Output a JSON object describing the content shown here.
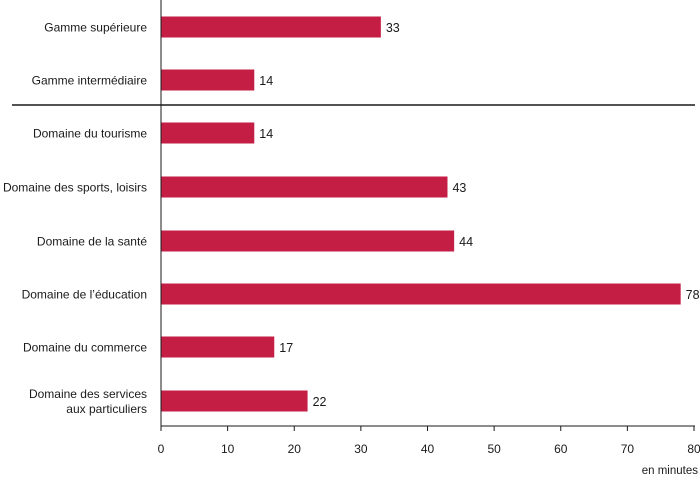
{
  "chart_data": {
    "type": "bar",
    "orientation": "horizontal",
    "categories": [
      [
        "Gamme supérieure"
      ],
      [
        "Gamme intermédiaire"
      ],
      [
        "Domaine du tourisme"
      ],
      [
        "Domaine des sports, loisirs"
      ],
      [
        "Domaine de la santé"
      ],
      [
        "Domaine de l’éducation"
      ],
      [
        "Domaine du commerce"
      ],
      [
        "Domaine des services",
        "aux particuliers"
      ]
    ],
    "values": [
      33,
      14,
      14,
      43,
      44,
      78,
      17,
      22
    ],
    "value_labels": [
      "33",
      "14",
      "14",
      "43",
      "44",
      "78",
      "17",
      "22"
    ],
    "separator_after_index": 1,
    "xlim": [
      0,
      80
    ],
    "xticks": [
      0,
      10,
      20,
      30,
      40,
      50,
      60,
      70,
      80
    ],
    "xlabel": "en minutes",
    "grid": false,
    "colors": {
      "bar": "#c41e45",
      "axis": "#1a1a1a"
    }
  }
}
